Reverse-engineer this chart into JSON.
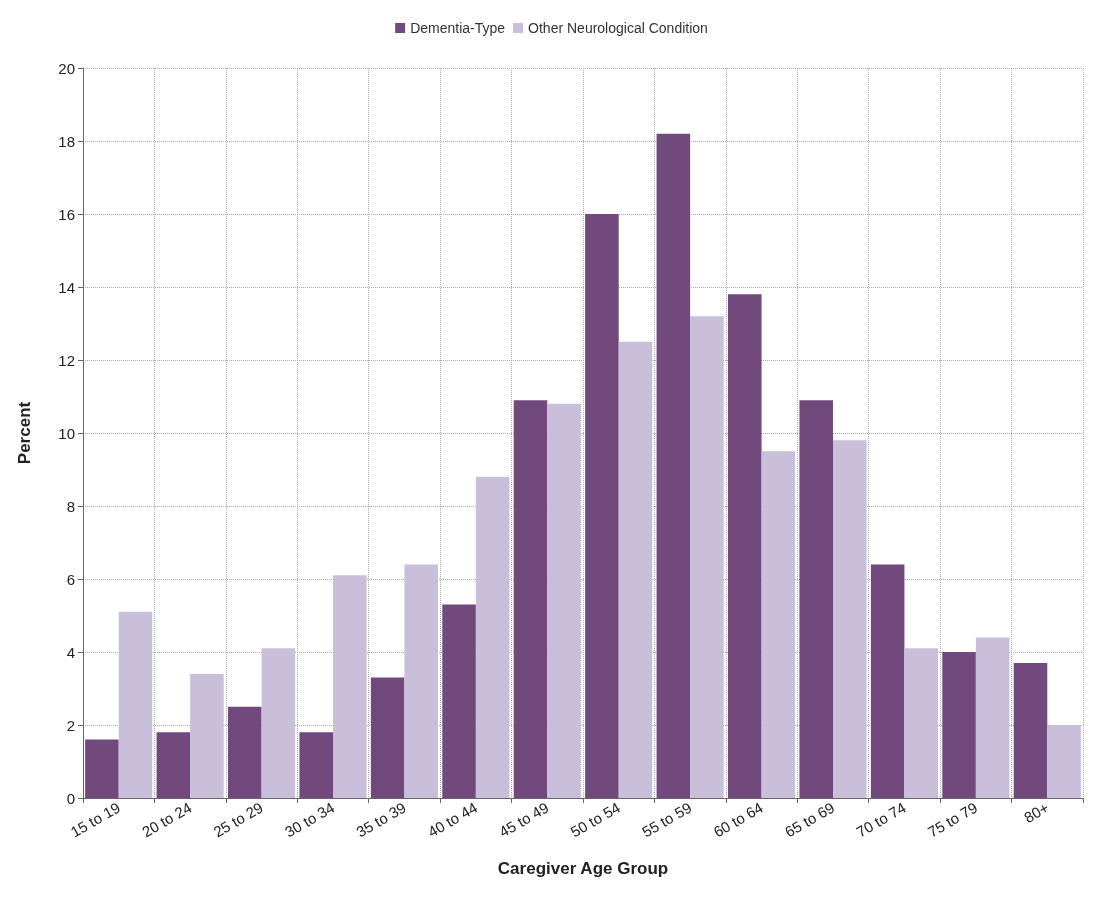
{
  "chart_data": {
    "type": "bar",
    "xlabel": "Caregiver Age Group",
    "ylabel": "Percent",
    "categories": [
      "15 to 19",
      "20 to 24",
      "25 to 29",
      "30 to 34",
      "35 to 39",
      "40 to 44",
      "45 to 49",
      "50 to 54",
      "55 to 59",
      "60 to 64",
      "65 to 69",
      "70 to 74",
      "75 to 79",
      "80+"
    ],
    "series": [
      {
        "name": "Dementia-Type",
        "color": "#72497c",
        "values": [
          1.6,
          1.8,
          2.5,
          1.8,
          3.3,
          5.3,
          10.9,
          16.0,
          18.2,
          13.8,
          10.9,
          6.4,
          4.0,
          3.7
        ]
      },
      {
        "name": "Other Neurological Condition",
        "color": "#c9bfdb",
        "values": [
          5.1,
          3.4,
          4.1,
          6.1,
          6.4,
          8.8,
          10.8,
          12.5,
          13.2,
          9.5,
          9.8,
          4.1,
          4.4,
          2.0
        ]
      }
    ],
    "ylim": [
      0,
      20
    ],
    "yticks": [
      0,
      2,
      4,
      6,
      8,
      10,
      12,
      14,
      16,
      18,
      20
    ],
    "grid": true,
    "legend": "top"
  }
}
